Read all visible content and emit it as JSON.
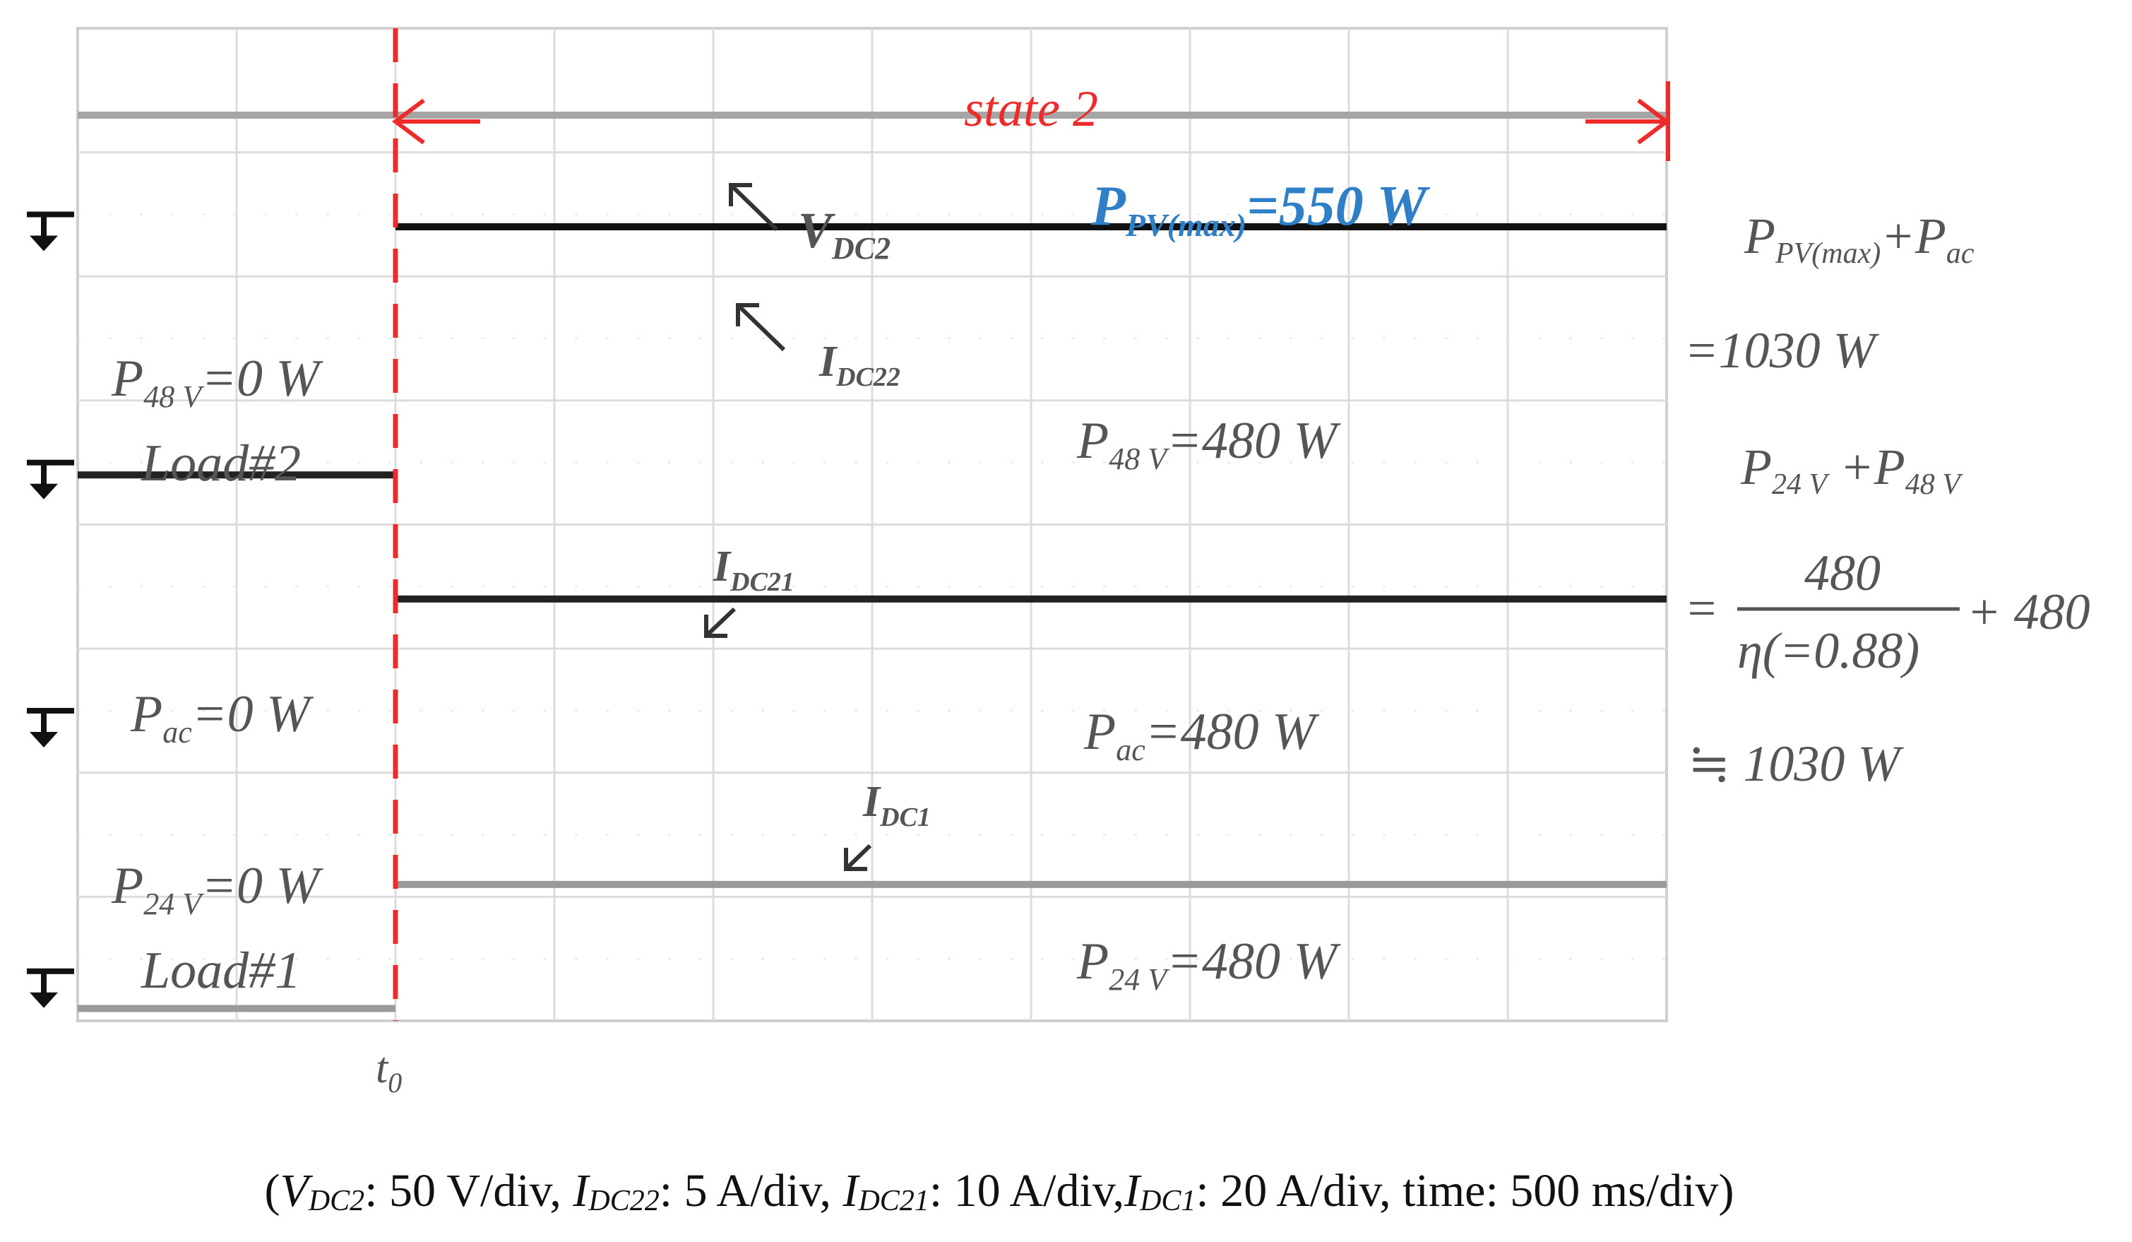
{
  "chart_data": {
    "type": "line",
    "title": "",
    "xlabel": "",
    "ylabel": "",
    "grid": true,
    "x_divisions": 10,
    "y_divisions": 8,
    "marker": {
      "label_main": "t",
      "label_sub": "0",
      "x_div": 2
    },
    "state_label": "state 2",
    "series": [
      {
        "name": "VDC2",
        "color": "#a6a6a6",
        "before": 7.3,
        "after": 7.3
      },
      {
        "name": "IDC22",
        "color": "#111111",
        "before": null,
        "after": 6.4
      },
      {
        "name": "IDC21",
        "color": "#222222",
        "before": 4.4,
        "after": 3.4
      },
      {
        "name": "IDC1",
        "color": "#9a9a9a",
        "before": 0.1,
        "after": 1.1
      }
    ],
    "ground_markers": [
      6.5,
      4.5,
      2.5,
      0.4
    ],
    "annotations": {
      "vdc2": {
        "main": "V",
        "sub": "DC2"
      },
      "idc22": {
        "main": "I",
        "sub": "DC22"
      },
      "idc21": {
        "main": "I",
        "sub": "DC21"
      },
      "idc1": {
        "main": "I",
        "sub": "DC1"
      },
      "ppv_max": {
        "main": "P",
        "sub": "PV(max)",
        "tail": "=550 W"
      },
      "p48_zero": {
        "main": "P",
        "sub": "48 V",
        "tail": "=0 W"
      },
      "load2": "Load#2",
      "pac_zero": {
        "main": "P",
        "sub": "ac",
        "tail": "=0 W"
      },
      "p24_zero": {
        "main": "P",
        "sub": "24 V",
        "tail": "=0 W"
      },
      "load1": "Load#1",
      "p48_on": {
        "main": "P",
        "sub": "48 V",
        "tail": "=480 W"
      },
      "pac_on": {
        "main": "P",
        "sub": "ac",
        "tail": "=480 W"
      },
      "p24_on": {
        "main": "P",
        "sub": "24 V",
        "tail": "=480 W"
      }
    },
    "side_equation": {
      "line1": {
        "a_main": "P",
        "a_sub": "PV(max)",
        "plus": "+",
        "b_main": "P",
        "b_sub": "ac"
      },
      "line2": "=1030 W",
      "line3": {
        "a_main": "P",
        "a_sub": "24 V",
        "plus": " +",
        "b_main": "P",
        "b_sub": "48 V"
      },
      "eq_sign": "=",
      "numerator": "480",
      "denominator": "η(=0.88)",
      "plus_term": "+ 480",
      "approx": "≒ 1030 W"
    },
    "caption": {
      "vdc2_main": "V",
      "vdc2_sub": "DC2",
      "vdc2_value": ": 50 V/div, ",
      "idc22_main": "I",
      "idc22_sub": "DC22",
      "idc22_value": ": 5 A/div, ",
      "idc21_main": "I",
      "idc21_sub": "DC21",
      "idc21_value": ": 10 A/div,",
      "idc1_main": "I",
      "idc1_sub": "DC1",
      "idc1_value": ": 20 A/div, time: 500 ms/div)",
      "open": "("
    }
  }
}
